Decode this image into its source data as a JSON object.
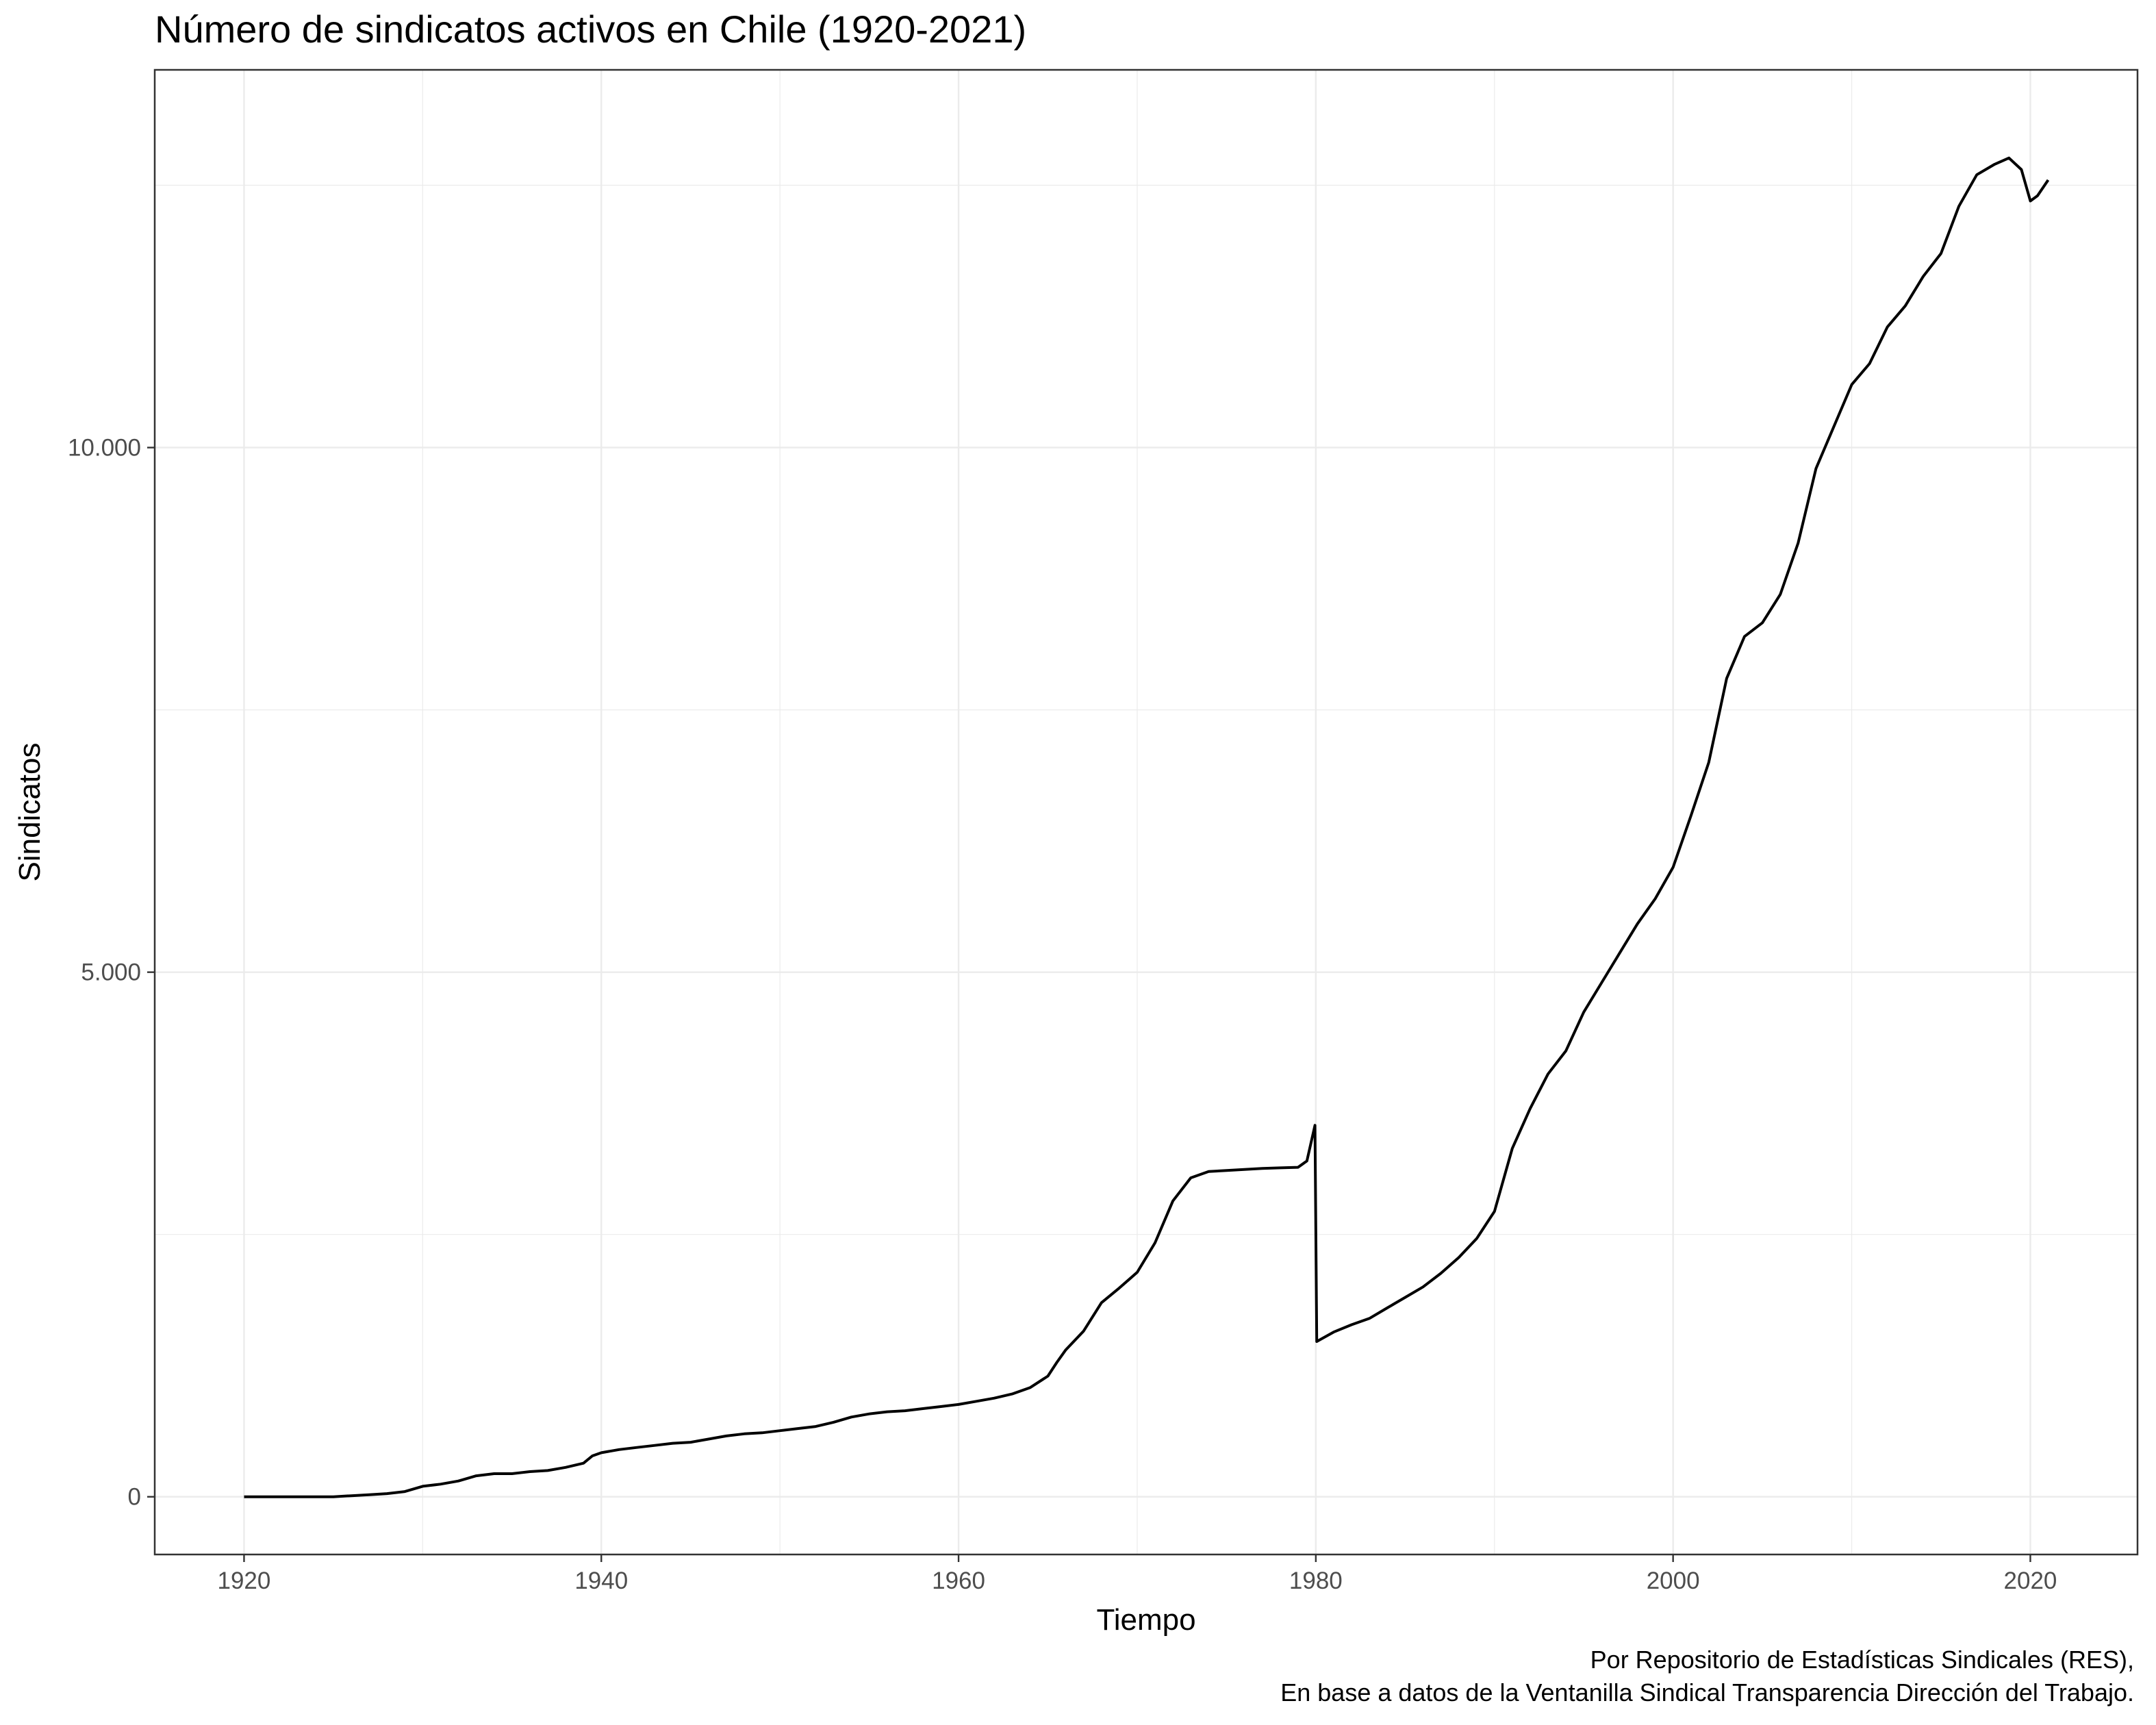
{
  "chart_data": {
    "type": "line",
    "title": "Número de sindicatos activos en Chile (1920-2021)",
    "xlabel": "Tiempo",
    "ylabel": "Sindicatos",
    "xlim": [
      1915,
      2026
    ],
    "ylim": [
      -550,
      13600
    ],
    "x_ticks": [
      1920,
      1940,
      1960,
      1980,
      2000,
      2020
    ],
    "x_tick_labels": [
      "1920",
      "1940",
      "1960",
      "1980",
      "2000",
      "2020"
    ],
    "y_ticks": [
      0,
      5000,
      10000
    ],
    "y_tick_labels": [
      "0",
      "5.000",
      "10.000"
    ],
    "grid": true,
    "legend": "none",
    "caption": [
      "Por Repositorio de Estadísticas Sindicales (RES),",
      "En base a datos de la Ventanilla Sindical Transparencia Dirección del Trabajo."
    ],
    "colors": {
      "line": "#000000",
      "grid": "#ebebeb",
      "panel_border": "#333333"
    },
    "series": [
      {
        "x": [
          1920,
          1922,
          1924,
          1925,
          1926,
          1927,
          1928,
          1929,
          1930,
          1931,
          1932,
          1933,
          1934,
          1935,
          1936,
          1937,
          1938,
          1939,
          1939.5,
          1940,
          1941,
          1942,
          1943,
          1944,
          1945,
          1946,
          1947,
          1948,
          1949,
          1950,
          1951,
          1952,
          1953,
          1954,
          1955,
          1956,
          1957,
          1958,
          1959,
          1960,
          1961,
          1962,
          1963,
          1964,
          1965,
          1965.5,
          1966,
          1967,
          1968,
          1969,
          1970,
          1971,
          1972,
          1973,
          1974,
          1975,
          1976,
          1977,
          1978,
          1979,
          1979.5,
          1979.95,
          1980.05,
          1981,
          1982,
          1983,
          1984,
          1985,
          1986,
          1987,
          1988,
          1989,
          1990,
          1991,
          1992,
          1993,
          1994,
          1995,
          1996,
          1997,
          1998,
          1999,
          2000,
          2001,
          2002,
          2003,
          2004,
          2005,
          2006,
          2007,
          2008,
          2009,
          2010,
          2011,
          2012,
          2013,
          2014,
          2015,
          2016,
          2017,
          2018,
          2018.8,
          2019.5,
          2020,
          2020.4,
          2021
        ],
        "y": [
          0,
          0,
          0,
          0,
          10,
          20,
          30,
          50,
          100,
          120,
          150,
          200,
          220,
          220,
          240,
          250,
          280,
          320,
          390,
          420,
          450,
          470,
          490,
          510,
          520,
          550,
          580,
          600,
          610,
          630,
          650,
          670,
          710,
          760,
          790,
          810,
          820,
          840,
          860,
          880,
          910,
          940,
          980,
          1040,
          1150,
          1280,
          1400,
          1580,
          1850,
          1990,
          2140,
          2420,
          2820,
          3040,
          3100,
          3110,
          3120,
          3130,
          3135,
          3140,
          3200,
          3540,
          1480,
          1570,
          1640,
          1700,
          1800,
          1900,
          2000,
          2130,
          2280,
          2460,
          2720,
          3320,
          3700,
          4030,
          4250,
          4620,
          4900,
          5180,
          5460,
          5700,
          6000,
          6490,
          7000,
          7800,
          8200,
          8330,
          8600,
          9090,
          9800,
          10200,
          10600,
          10800,
          11150,
          11350,
          11630,
          11850,
          12300,
          12600,
          12700,
          12760,
          12650,
          12350,
          12400,
          12550
        ]
      }
    ]
  }
}
